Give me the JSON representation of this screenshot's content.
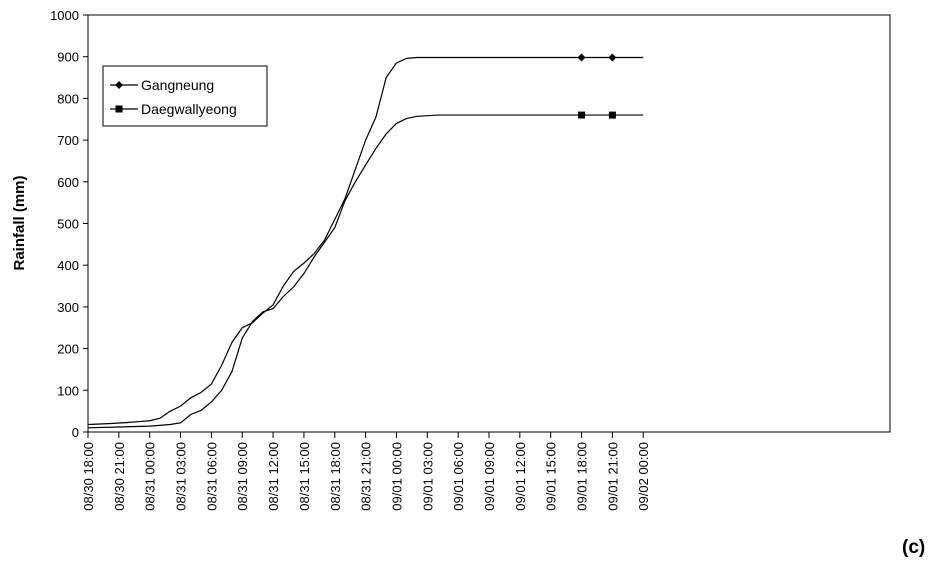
{
  "panel_label": "(c)",
  "chart_data": {
    "type": "line",
    "title": "",
    "xlabel": "",
    "ylabel": "Rainfall (mm)",
    "ylim": [
      0,
      1000
    ],
    "yticks": [
      0,
      100,
      200,
      300,
      400,
      500,
      600,
      700,
      800,
      900,
      1000
    ],
    "x_unit": "hours",
    "x_range_hours": [
      0,
      78
    ],
    "xticks": [
      {
        "t": 0,
        "label": "08/30 18:00"
      },
      {
        "t": 3,
        "label": "08/30 21:00"
      },
      {
        "t": 6,
        "label": "08/31 00:00"
      },
      {
        "t": 9,
        "label": "08/31 03:00"
      },
      {
        "t": 12,
        "label": "08/31 06:00"
      },
      {
        "t": 15,
        "label": "08/31 09:00"
      },
      {
        "t": 18,
        "label": "08/31 12:00"
      },
      {
        "t": 21,
        "label": "08/31 15:00"
      },
      {
        "t": 24,
        "label": "08/31 18:00"
      },
      {
        "t": 27,
        "label": "08/31 21:00"
      },
      {
        "t": 30,
        "label": "09/01 00:00"
      },
      {
        "t": 33,
        "label": "09/01 03:00"
      },
      {
        "t": 36,
        "label": "09/01 06:00"
      },
      {
        "t": 39,
        "label": "09/01 09:00"
      },
      {
        "t": 42,
        "label": "09/01 12:00"
      },
      {
        "t": 45,
        "label": "09/01 15:00"
      },
      {
        "t": 48,
        "label": "09/01 18:00"
      },
      {
        "t": 51,
        "label": "09/01 21:00"
      },
      {
        "t": 54,
        "label": "09/02 00:00"
      }
    ],
    "grid": false,
    "legend_position": "top-left",
    "series": [
      {
        "name": "Gangneung",
        "marker": "diamond",
        "color": "#000000",
        "points": [
          [
            0,
            18
          ],
          [
            2,
            20
          ],
          [
            4,
            23
          ],
          [
            5,
            25
          ],
          [
            6,
            27
          ],
          [
            7,
            33
          ],
          [
            8,
            50
          ],
          [
            9,
            62
          ],
          [
            10,
            82
          ],
          [
            11,
            95
          ],
          [
            12,
            115
          ],
          [
            13,
            160
          ],
          [
            14,
            215
          ],
          [
            15,
            250
          ],
          [
            16,
            262
          ],
          [
            17,
            285
          ],
          [
            18,
            305
          ],
          [
            19,
            350
          ],
          [
            20,
            385
          ],
          [
            21,
            405
          ],
          [
            22,
            428
          ],
          [
            23,
            460
          ],
          [
            24,
            510
          ],
          [
            25,
            560
          ],
          [
            26,
            630
          ],
          [
            27,
            700
          ],
          [
            28,
            755
          ],
          [
            29,
            850
          ],
          [
            30,
            885
          ],
          [
            31,
            896
          ],
          [
            32,
            898
          ],
          [
            36,
            898
          ],
          [
            40,
            898
          ],
          [
            44,
            898
          ],
          [
            48,
            898
          ],
          [
            51,
            898
          ],
          [
            54,
            898
          ]
        ],
        "marker_points": [
          [
            48,
            898
          ],
          [
            51,
            898
          ]
        ]
      },
      {
        "name": "Daegwallyeong",
        "marker": "square",
        "color": "#000000",
        "points": [
          [
            0,
            10
          ],
          [
            3,
            12
          ],
          [
            6,
            14
          ],
          [
            8,
            18
          ],
          [
            9,
            22
          ],
          [
            10,
            42
          ],
          [
            11,
            52
          ],
          [
            12,
            72
          ],
          [
            13,
            100
          ],
          [
            14,
            145
          ],
          [
            15,
            225
          ],
          [
            16,
            265
          ],
          [
            17,
            288
          ],
          [
            18,
            296
          ],
          [
            19,
            325
          ],
          [
            20,
            348
          ],
          [
            21,
            380
          ],
          [
            22,
            420
          ],
          [
            23,
            455
          ],
          [
            24,
            490
          ],
          [
            25,
            555
          ],
          [
            26,
            600
          ],
          [
            27,
            640
          ],
          [
            28,
            680
          ],
          [
            29,
            715
          ],
          [
            30,
            740
          ],
          [
            31,
            752
          ],
          [
            32,
            757
          ],
          [
            34,
            760
          ],
          [
            40,
            760
          ],
          [
            48,
            760
          ],
          [
            51,
            760
          ],
          [
            54,
            760
          ]
        ],
        "marker_points": [
          [
            48,
            760
          ],
          [
            51,
            760
          ]
        ]
      }
    ]
  }
}
